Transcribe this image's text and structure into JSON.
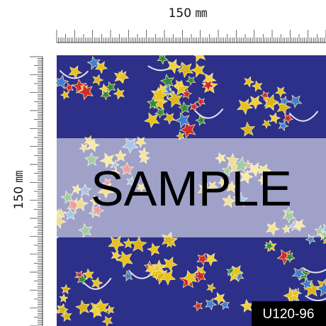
{
  "rulers": {
    "top_label": "150 ㎜",
    "left_label": "150 ㎜"
  },
  "watermark": "SAMPLE",
  "product_code": "U120-96"
}
